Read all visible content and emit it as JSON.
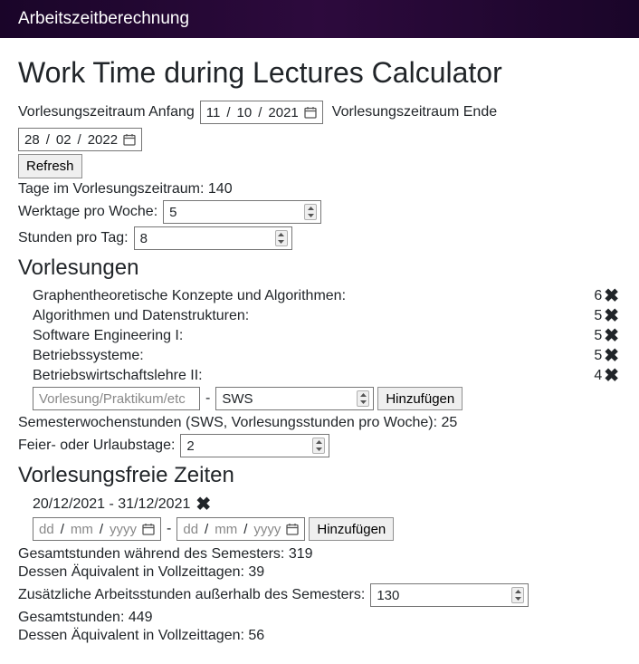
{
  "navbar": {
    "brand": "Arbeitszeitberechnung"
  },
  "title": "Work Time during Lectures Calculator",
  "period": {
    "start_label": "Vorlesungszeitraum Anfang",
    "start_day": "11",
    "start_month": "10",
    "start_year": "2021",
    "end_label": "Vorlesungszeitraum Ende",
    "end_day": "28",
    "end_month": "02",
    "end_year": "2022"
  },
  "refresh_label": "Refresh",
  "days_in_period": {
    "label": "Tage im Vorlesungszeitraum:",
    "value": "140"
  },
  "workdays": {
    "label": "Werktage pro Woche:",
    "value": "5"
  },
  "hours_per_day": {
    "label": "Stunden pro Tag:",
    "value": "8"
  },
  "lectures_heading": "Vorlesungen",
  "lectures": [
    {
      "name": "Graphentheoretische Konzepte und Algorithmen:",
      "sws": "6"
    },
    {
      "name": "Algorithmen und Datenstrukturen:",
      "sws": "5"
    },
    {
      "name": "Software Engineering I:",
      "sws": "5"
    },
    {
      "name": "Betriebssysteme:",
      "sws": "5"
    },
    {
      "name": "Betriebswirtschaftslehre II:",
      "sws": "4"
    }
  ],
  "lecture_add": {
    "name_placeholder": "Vorlesung/Praktikum/etc",
    "sws_placeholder": "SWS",
    "button": "Hinzufügen"
  },
  "sws_total": {
    "label": "Semesterwochenstunden (SWS, Vorlesungsstunden pro Woche):",
    "value": "25"
  },
  "holidays": {
    "label": "Feier- oder Urlaubstage:",
    "value": "2"
  },
  "freetimes_heading": "Vorlesungsfreie Zeiten",
  "freetimes": [
    {
      "range": "20/12/2021 - 31/12/2021"
    }
  ],
  "freetime_add": {
    "placeholder_day": "dd",
    "placeholder_month": "mm",
    "placeholder_year": "yyyy",
    "button": "Hinzufügen"
  },
  "total_semester_hours": {
    "label": "Gesamtstunden während des Semesters:",
    "value": "319"
  },
  "equiv_days_semester": {
    "label": "Dessen Äquivalent in Vollzeittagen:",
    "value": "39"
  },
  "extra_hours": {
    "label": "Zusätzliche Arbeitsstunden außerhalb des Semesters:",
    "value": "130"
  },
  "total_hours": {
    "label": "Gesamtstunden:",
    "value": "449"
  },
  "equiv_days_total": {
    "label": "Dessen Äquivalent in Vollzeittagen:",
    "value": "56"
  },
  "colors": {
    "navbar_bg": "#1a0529",
    "text": "#212529",
    "border": "#767676",
    "button_bg": "#efefef"
  }
}
